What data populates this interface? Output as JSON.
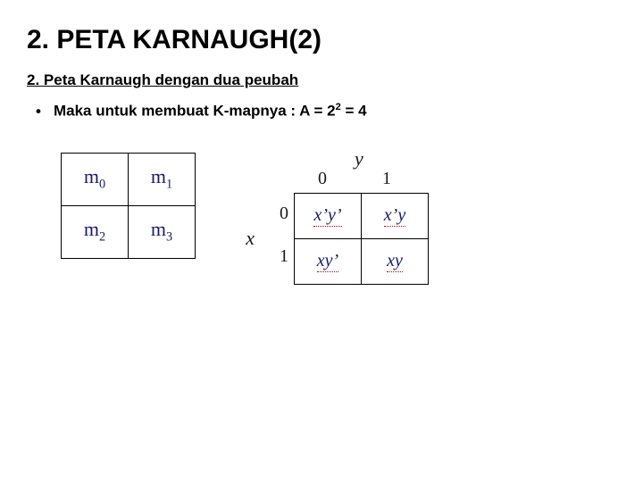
{
  "title": "2. PETA KARNAUGH(2)",
  "subtitle": "2. Peta Karnaugh dengan dua peubah",
  "bullet": {
    "text_before": "Maka untuk membuat K-mapnya : A = 2",
    "exp": "2",
    "text_after": " = 4"
  },
  "left_table": {
    "rows": [
      [
        {
          "sym": "m",
          "sub": "0"
        },
        {
          "sym": "m",
          "sub": "1"
        }
      ],
      [
        {
          "sym": "m",
          "sub": "2"
        },
        {
          "sym": "m",
          "sub": "3"
        }
      ]
    ]
  },
  "kmap": {
    "y_label": "y",
    "x_label": "x",
    "col_labels": [
      "0",
      "1"
    ],
    "row_labels": [
      "0",
      "1"
    ],
    "cells": [
      [
        "x’y’",
        "x’y"
      ],
      [
        "xy’",
        "xy"
      ]
    ]
  }
}
